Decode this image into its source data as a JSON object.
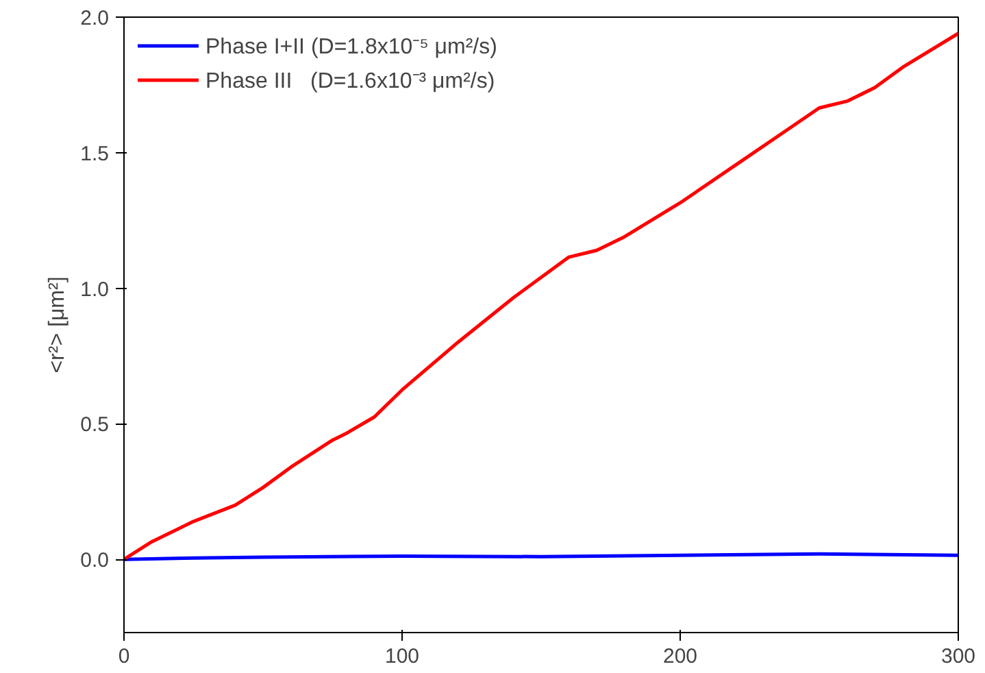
{
  "chart_data": {
    "type": "line",
    "ylabel": "<r²> [μm²]",
    "xlim": [
      0,
      300
    ],
    "ylim": [
      -0.27,
      2.0
    ],
    "xticks": [
      0,
      100,
      200,
      300
    ],
    "yticks": [
      {
        "value": 0,
        "label": "0.0"
      },
      {
        "value": 0.5,
        "label": "0.5"
      },
      {
        "value": 1.0,
        "label": "1.0"
      },
      {
        "value": 1.5,
        "label": "1.5"
      },
      {
        "value": 2.0,
        "label": "2.0"
      }
    ],
    "grid": false,
    "legend": "top left",
    "line_style": "solid",
    "series": [
      {
        "name": "Phase I+II (D=1.8x10⁻⁵ μm²/s)",
        "color": "#0000ff",
        "x": [
          0,
          25,
          50,
          100,
          150,
          200,
          250,
          300
        ],
        "values": [
          0,
          0.005,
          0.008,
          0.012,
          0.01,
          0.015,
          0.02,
          0.015
        ]
      },
      {
        "name": "Phase III   (D=1.6x10⁻³ μm²/s)",
        "color": "#ff0000",
        "x": [
          0,
          10,
          25,
          40,
          50,
          60,
          75,
          80,
          90,
          100,
          120,
          140,
          150,
          160,
          170,
          180,
          200,
          220,
          240,
          250,
          260,
          270,
          280,
          300
        ],
        "values": [
          0,
          0.065,
          0.14,
          0.2,
          0.265,
          0.34,
          0.44,
          0.465,
          0.525,
          0.625,
          0.8,
          0.965,
          1.04,
          1.115,
          1.14,
          1.19,
          1.315,
          1.455,
          1.595,
          1.665,
          1.69,
          1.74,
          1.815,
          1.94
        ]
      }
    ]
  }
}
